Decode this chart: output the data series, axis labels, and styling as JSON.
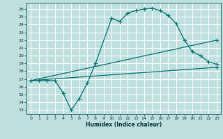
{
  "xlabel": "Humidex (Indice chaleur)",
  "bg_color": "#c0e0e0",
  "grid_color": "#ffffff",
  "line_color": "#007070",
  "xlim": [
    -0.5,
    23.5
  ],
  "ylim": [
    12.5,
    26.8
  ],
  "xticks": [
    0,
    1,
    2,
    3,
    4,
    5,
    6,
    7,
    8,
    9,
    10,
    11,
    12,
    13,
    14,
    15,
    16,
    17,
    18,
    19,
    20,
    21,
    22,
    23
  ],
  "yticks": [
    13,
    14,
    15,
    16,
    17,
    18,
    19,
    20,
    21,
    22,
    23,
    24,
    25,
    26
  ],
  "line1_x": [
    0,
    1,
    2,
    3,
    4,
    5,
    6,
    7,
    8,
    10,
    11,
    12,
    13,
    14,
    15,
    16,
    17,
    18,
    19,
    20,
    21,
    22,
    23
  ],
  "line1_y": [
    16.8,
    16.8,
    16.8,
    16.8,
    15.2,
    13.0,
    14.5,
    16.5,
    19.0,
    24.8,
    24.4,
    25.5,
    25.8,
    26.0,
    26.1,
    25.8,
    25.2,
    24.1,
    22.0,
    20.5,
    20.0,
    19.2,
    18.9
  ],
  "line2_x": [
    0,
    23
  ],
  "line2_y": [
    16.8,
    22.0
  ],
  "line3_x": [
    0,
    23
  ],
  "line3_y": [
    16.8,
    18.5
  ]
}
